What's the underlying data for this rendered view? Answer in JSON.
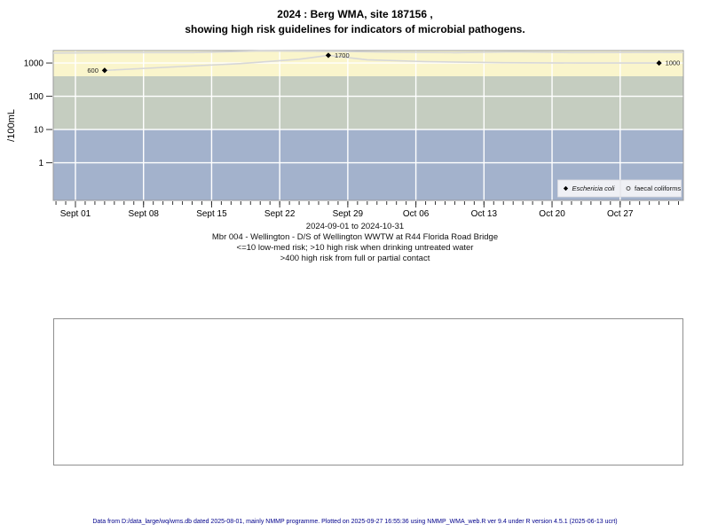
{
  "title": {
    "line1": "2024 : Berg WMA, site 187156 ,",
    "line2": "showing high risk guidelines for indicators of microbial pathogens."
  },
  "chart_data": {
    "type": "scatter",
    "ylabel": "/100mL",
    "y_scale": "log10",
    "y_tick_values": [
      1000,
      100,
      10,
      1
    ],
    "ylim": [
      0.07,
      2400
    ],
    "x_axis": {
      "tick_labels": [
        "Sept 01",
        "Sept 08",
        "Sept 15",
        "Sept 22",
        "Sept 29",
        "Oct 06",
        "Oct 13",
        "Oct 20",
        "Oct 27"
      ],
      "tick_days": [
        0,
        7,
        14,
        21,
        28,
        35,
        42,
        49,
        56
      ],
      "minor_tick_days": {
        "from": -2,
        "to": 62
      },
      "range_days": [
        -2.28,
        62.5
      ],
      "date_range": "2024-09-01 to 2024-10-31"
    },
    "bands": [
      {
        "name": "high-risk-full-contact",
        "min": 400,
        "max": null,
        "color": "#faf5cc",
        "meaning": ">400 high risk from full or partial contact"
      },
      {
        "name": "high-risk-drinking",
        "min": 10,
        "max": 400,
        "color": "#c5cdc0",
        "meaning": ">10 high risk when drinking untreated water"
      },
      {
        "name": "low-med-risk",
        "min": null,
        "max": 10,
        "color": "#a3b2cc",
        "meaning": "<=10 low-med risk"
      }
    ],
    "series": [
      {
        "name": "Eschericia coli",
        "marker": "diamond",
        "marker_color": "#000000",
        "line_color": "#d7d7d7",
        "show_markers": true,
        "points": [
          {
            "day": 3,
            "value": 600,
            "label": "600",
            "label_side": "left"
          },
          {
            "day": 26,
            "value": 1700,
            "label": "1700",
            "label_side": "right"
          },
          {
            "day": 60,
            "value": 1000,
            "label": "1000",
            "label_side": "right"
          }
        ],
        "line_points": [
          [
            3,
            600
          ],
          [
            10,
            760
          ],
          [
            17,
            960
          ],
          [
            23,
            1300
          ],
          [
            26,
            1700
          ],
          [
            30,
            1250
          ],
          [
            36,
            1100
          ],
          [
            44,
            1020
          ],
          [
            52,
            1000
          ],
          [
            60,
            1000
          ]
        ]
      },
      {
        "name": "faecal coliforms",
        "marker": "open-circle",
        "marker_color": "#555555",
        "line_color": "#d7d7d7",
        "show_markers": false,
        "points": [],
        "line_points": [
          [
            -2.28,
            2000
          ],
          [
            4,
            2060
          ],
          [
            12,
            2060
          ],
          [
            19,
            2300
          ],
          [
            27,
            2250
          ],
          [
            33,
            2100
          ],
          [
            39,
            2050
          ],
          [
            45,
            2160
          ],
          [
            51,
            2060
          ],
          [
            62.5,
            2100
          ]
        ]
      }
    ],
    "legend": {
      "position": "bottom-right",
      "entries": [
        {
          "marker": "diamond",
          "label": "Eschericia coli",
          "italic": true
        },
        {
          "marker": "open-circle",
          "label": "faecal coliforms",
          "italic": false
        }
      ]
    }
  },
  "subtitle": {
    "lines": [
      "2024-09-01 to 2024-10-31",
      "Mbr 004 - Wellington - D/S of Wellington WWTW at R44 Florida Road Bridge",
      "<=10 low-med risk; >10 high risk when drinking untreated water",
      ">400 high risk from full or partial contact"
    ]
  },
  "notes_box": {
    "content": ""
  },
  "footer": {
    "text": "Data from D:/data_large/wq/wms.db dated 2025-08-01, mainly NMMP programme. Plotted on 2025-09-27 16:55:36 using NMMP_WMA_web.R ver 9.4 under R version 4.5.1 (2025-06-13 ucrt)",
    "color": "#00008b"
  },
  "colors": {
    "grid": "#ffffff",
    "plot_border": "#9b9b9b",
    "tick": "#333333",
    "text": "#000000"
  }
}
